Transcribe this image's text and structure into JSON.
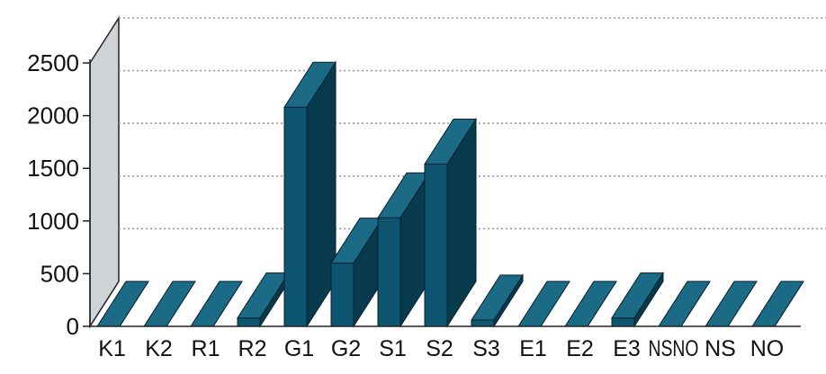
{
  "chart_data": {
    "type": "bar",
    "style": "3d",
    "categories": [
      "K1",
      "K2",
      "R1",
      "R2",
      "G1",
      "G2",
      "S1",
      "S2",
      "S3",
      "E1",
      "E2",
      "E3",
      "NSNO",
      "NS",
      "NO"
    ],
    "tick_labels": [
      "K1",
      "K2",
      "R1",
      "R2",
      "G1",
      "G2",
      "S1",
      "S2",
      "S3",
      "E1",
      "E2",
      "E3",
      "NSNO",
      "NS",
      "NO"
    ],
    "values": [
      0,
      0,
      0,
      80,
      2080,
      600,
      1030,
      1540,
      60,
      0,
      0,
      80,
      0,
      0,
      0
    ],
    "yticks": [
      0,
      500,
      1000,
      1500,
      2000,
      2500
    ],
    "ylim": [
      0,
      2500
    ],
    "grid": true,
    "legend": false,
    "title": "",
    "xlabel": "",
    "ylabel": "",
    "colors": {
      "bar_front": "#0d5570",
      "bar_top": "#1b6a86",
      "bar_side": "#083a4e",
      "bar_edge": "#05202c",
      "wall": "#cfd3d6",
      "grid": "#9a9a9a",
      "axis": "#222222"
    }
  }
}
